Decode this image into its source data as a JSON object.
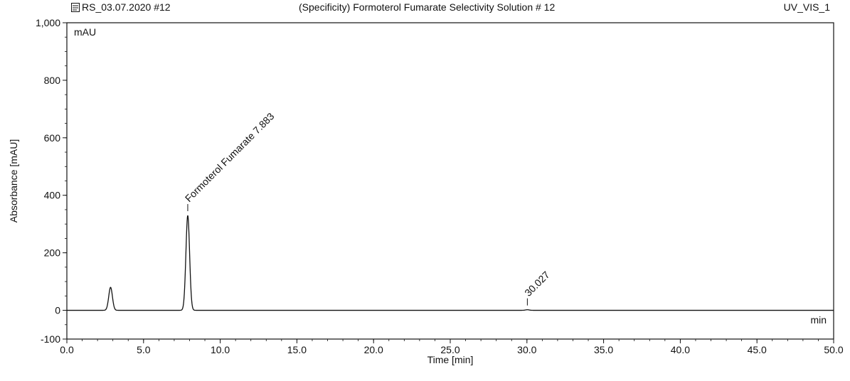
{
  "header": {
    "sample_name": "RS_03.07.2020 #12",
    "file_icon": "sequence-file-icon",
    "title": "(Specificity) Formoterol Fumarate Selectivity Solution # 12",
    "channel": "UV_VIS_1"
  },
  "chart_data": {
    "type": "line",
    "title": "(Specificity) Formoterol Fumarate Selectivity Solution # 12",
    "xlabel": "Time [min]",
    "ylabel": "Absorbance [mAU]",
    "x_unit": "min",
    "y_unit": "mAU",
    "xlim": [
      0,
      50
    ],
    "ylim": [
      -100,
      1000
    ],
    "x_ticks": [
      0,
      5,
      10,
      15,
      20,
      25,
      30,
      35,
      40,
      45,
      50
    ],
    "x_tick_labels": [
      "0.0",
      "5.0",
      "10.0",
      "15.0",
      "20.0",
      "25.0",
      "30.0",
      "35.0",
      "40.0",
      "45.0",
      "50.0"
    ],
    "y_ticks": [
      -100,
      0,
      200,
      400,
      600,
      800,
      1000
    ],
    "y_tick_labels": [
      "-100",
      "0",
      "200",
      "400",
      "600",
      "800",
      "1,000"
    ],
    "grid": false,
    "line_color": "#111111",
    "peaks": [
      {
        "rt": 2.85,
        "height": 80
      },
      {
        "rt": 7.883,
        "height": 330,
        "label": "Formoterol Fumarate 7.883"
      },
      {
        "rt": 30.027,
        "height": 2,
        "label": "30.027"
      }
    ]
  }
}
